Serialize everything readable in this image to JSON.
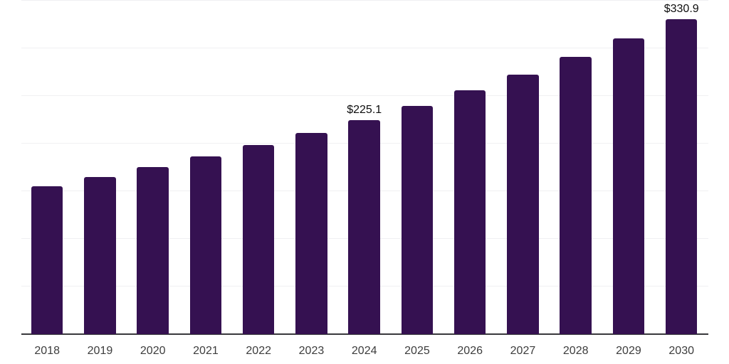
{
  "chart_data": {
    "type": "bar",
    "title": "",
    "xlabel": "",
    "ylabel": "",
    "categories": [
      "2018",
      "2019",
      "2020",
      "2021",
      "2022",
      "2023",
      "2024",
      "2025",
      "2026",
      "2027",
      "2028",
      "2029",
      "2030"
    ],
    "values": [
      155.2,
      165.1,
      175.7,
      186.9,
      198.9,
      211.6,
      225.1,
      240.0,
      256.0,
      272.9,
      291.0,
      310.4,
      330.9
    ],
    "data_labels": [
      "",
      "",
      "",
      "",
      "",
      "",
      "$225.1",
      "",
      "",
      "",
      "",
      "",
      "$330.9"
    ],
    "ylim": [
      0,
      350
    ],
    "gridline_step": 50,
    "grid": "horizontal-only",
    "legend": "none",
    "y_axis_labels": "none",
    "colors": {
      "bar": "#351151",
      "gridline": "#f0f0f2",
      "axis_line": "#38383c",
      "tick_label": "#3d3d3d",
      "value_label": "#0d0d0d",
      "background": "#ffffff"
    }
  }
}
